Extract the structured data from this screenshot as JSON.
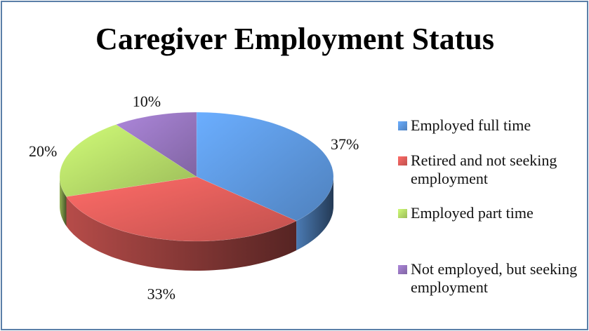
{
  "chart_data": {
    "type": "pie3d",
    "title": "Caregiver Employment Status",
    "categories": [
      "Employed full time",
      "Retired and not seeking employment",
      "Employed part time",
      "Not employed, but seeking employment"
    ],
    "values": [
      37,
      33,
      20,
      10
    ],
    "value_labels": [
      "37%",
      "33%",
      "20%",
      "10%"
    ],
    "colors": [
      "#4f81bd",
      "#c0504d",
      "#9bbb59",
      "#8064a2"
    ],
    "legend": "right"
  }
}
